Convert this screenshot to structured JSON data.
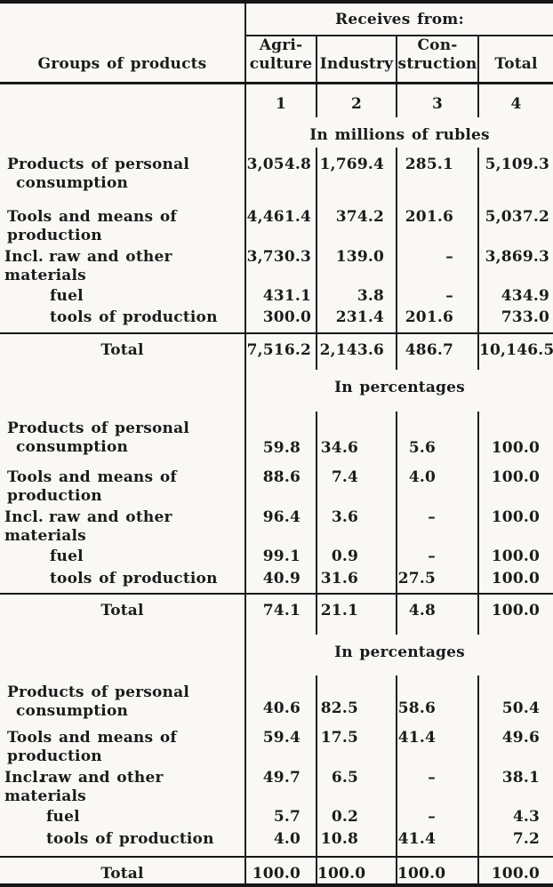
{
  "table": {
    "stub_header": "Groups of products",
    "spanner": "Receives from:",
    "columns": [
      {
        "lines": [
          "Agri-",
          "culture"
        ],
        "number": "1"
      },
      {
        "lines": [
          "Industry"
        ],
        "number": "2"
      },
      {
        "lines": [
          "Con-",
          "struction"
        ],
        "number": "3"
      },
      {
        "lines": [
          "Total"
        ],
        "number": "4"
      }
    ],
    "sections": [
      {
        "band": "In millions of rubles",
        "align": "millions",
        "rows": [
          {
            "kind": "group2",
            "lines": [
              "Products of personal",
              "consumption"
            ],
            "values_line": "top",
            "values": [
              "3,054.8",
              "1,769.4",
              "285.1",
              "5,109.3"
            ]
          },
          {
            "kind": "group",
            "label": "Tools and means of production",
            "values": [
              "4,461.4",
              "374.2",
              "201.6",
              "5,037.2"
            ]
          },
          {
            "kind": "incl",
            "prefix": "Incl.",
            "label": "raw and other materials",
            "values": [
              "3,730.3",
              "139.0",
              "–",
              "3,869.3"
            ]
          },
          {
            "kind": "sub",
            "label": "fuel",
            "values": [
              "431.1",
              "3.8",
              "–",
              "434.9"
            ]
          },
          {
            "kind": "sub",
            "label": "tools of production",
            "values": [
              "300.0",
              "231.4",
              "201.6",
              "733.0"
            ]
          }
        ],
        "total": {
          "label": "Total",
          "values": [
            "7,516.2",
            "2,143.6",
            "486.7",
            "10,146.5"
          ]
        }
      },
      {
        "band": "In percentages",
        "align": "percent",
        "rows": [
          {
            "kind": "group2",
            "lines": [
              "Products of personal",
              "consumption"
            ],
            "values_line": "bottom",
            "values": [
              "59.8",
              "34.6",
              "5.6",
              "100.0"
            ]
          },
          {
            "kind": "group",
            "label": "Tools and means of production",
            "values": [
              "88.6",
              "7.4",
              "4.0",
              "100.0"
            ]
          },
          {
            "kind": "incl",
            "prefix": "Incl.",
            "label": "raw and other materials",
            "values": [
              "96.4",
              "3.6",
              "–",
              "100.0"
            ]
          },
          {
            "kind": "sub",
            "label": "fuel",
            "values": [
              "99.1",
              "0.9",
              "–",
              "100.0"
            ]
          },
          {
            "kind": "sub",
            "label": "tools of production",
            "values": [
              "40.9",
              "31.6",
              "27.5",
              "100.0"
            ]
          }
        ],
        "total": {
          "label": "Total",
          "values": [
            "74.1",
            "21.1",
            "4.8",
            "100.0"
          ]
        }
      },
      {
        "band": "In percentages",
        "align": "percent",
        "rows": [
          {
            "kind": "group2",
            "lines": [
              "Products of personal",
              "consumption"
            ],
            "values_line": "bottom",
            "values": [
              "40.6",
              "82.5",
              "58.6",
              "50.4"
            ]
          },
          {
            "kind": "group",
            "label": "Tools and means of production",
            "values": [
              "59.4",
              "17.5",
              "41.4",
              "49.6"
            ]
          },
          {
            "kind": "incl",
            "prefix": "Incl.",
            "label": "raw and other materials",
            "values": [
              "49.7",
              "6.5",
              "–",
              "38.1"
            ]
          },
          {
            "kind": "sub",
            "label": "fuel",
            "values": [
              "5.7",
              "0.2",
              "–",
              "4.3"
            ]
          },
          {
            "kind": "sub",
            "label": "tools of production",
            "values": [
              "4.0",
              "10.8",
              "41.4",
              "7.2"
            ]
          }
        ],
        "total": {
          "label": "Total",
          "values": [
            "100.0",
            "100.0",
            "100.0",
            "100.0"
          ]
        }
      }
    ]
  }
}
